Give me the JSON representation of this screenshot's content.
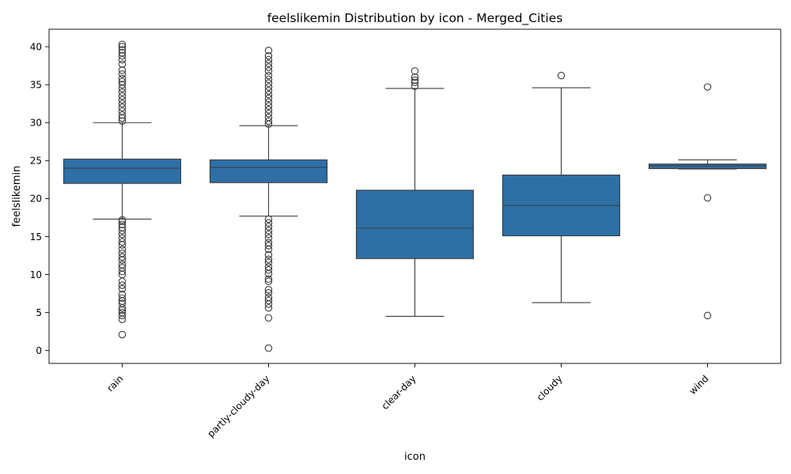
{
  "chart_data": {
    "type": "box",
    "title": "feelslikemin Distribution by icon - Merged_Cities",
    "xlabel": "icon",
    "ylabel": "feelslikemin",
    "categories": [
      "rain",
      "partly-cloudy-day",
      "clear-day",
      "cloudy",
      "wind"
    ],
    "y_ticks": [
      0,
      5,
      10,
      15,
      20,
      25,
      30,
      35,
      40
    ],
    "ylim": [
      -1.7,
      42.3
    ],
    "box_color": "#2e6fa6",
    "line_color": "#3d3d3d",
    "boxes": [
      {
        "category": "rain",
        "whisker_low": 17.3,
        "q1": 22.0,
        "median": 24.0,
        "q3": 25.2,
        "whisker_high": 30.0,
        "outliers": [
          2.1,
          4.1,
          4.6,
          5.0,
          5.3,
          5.6,
          6.2,
          6.5,
          6.9,
          7.4,
          8.1,
          8.6,
          9.1,
          10.0,
          10.4,
          10.9,
          11.3,
          11.9,
          12.3,
          12.8,
          13.3,
          13.9,
          14.3,
          14.8,
          15.3,
          15.8,
          16.2,
          16.6,
          17.0,
          17.2,
          30.2,
          30.6,
          31.0,
          31.5,
          32.0,
          32.5,
          33.0,
          33.5,
          34.0,
          34.5,
          35.0,
          35.4,
          35.8,
          36.4,
          36.9,
          37.7,
          38.3,
          38.8,
          39.2,
          39.6,
          40.0,
          40.3
        ]
      },
      {
        "category": "partly-cloudy-day",
        "whisker_low": 17.7,
        "q1": 22.1,
        "median": 24.1,
        "q3": 25.1,
        "whisker_high": 29.6,
        "outliers": [
          0.3,
          4.3,
          5.6,
          6.1,
          6.6,
          7.0,
          7.6,
          8.0,
          9.1,
          9.4,
          10.1,
          10.6,
          11.0,
          11.6,
          12.0,
          12.6,
          13.3,
          13.8,
          14.2,
          14.8,
          15.3,
          15.8,
          16.3,
          16.8,
          17.3,
          29.8,
          30.2,
          30.7,
          31.2,
          31.7,
          32.2,
          32.7,
          33.2,
          33.7,
          34.2,
          34.7,
          35.2,
          35.7,
          36.2,
          36.8,
          37.3,
          37.8,
          38.3,
          38.8,
          39.5
        ]
      },
      {
        "category": "clear-day",
        "whisker_low": 4.5,
        "q1": 12.1,
        "median": 16.1,
        "q3": 21.1,
        "whisker_high": 34.5,
        "outliers": [
          34.8,
          35.3,
          35.6,
          36.0,
          36.8
        ]
      },
      {
        "category": "cloudy",
        "whisker_low": 6.3,
        "q1": 15.1,
        "median": 19.1,
        "q3": 23.1,
        "whisker_high": 34.6,
        "outliers": [
          36.2
        ]
      },
      {
        "category": "wind",
        "whisker_low": 23.9,
        "q1": 23.95,
        "median": 24.3,
        "q3": 24.55,
        "whisker_high": 25.1,
        "outliers": [
          4.6,
          20.1,
          34.7
        ]
      }
    ]
  }
}
